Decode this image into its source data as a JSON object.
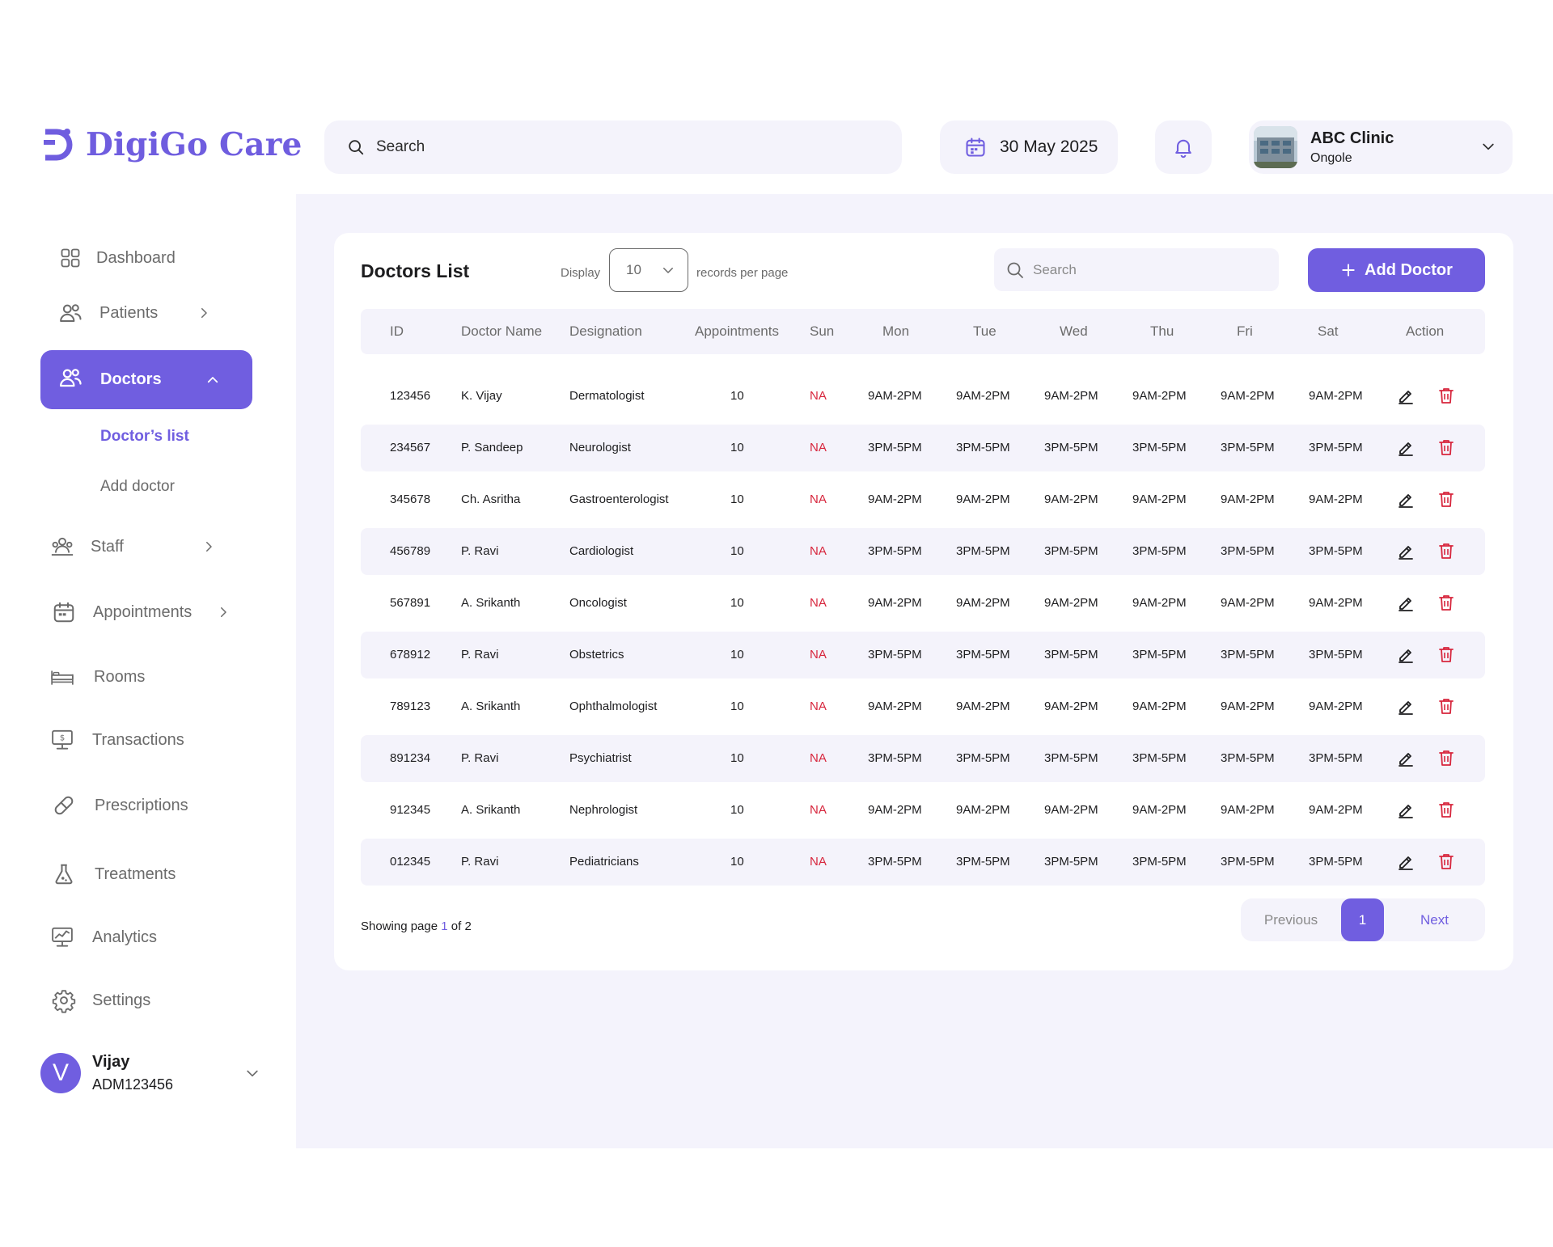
{
  "brand": {
    "name": "DigiGo Care",
    "accent": "#705ee0"
  },
  "header": {
    "search_placeholder": "Search",
    "date": "30 May 2025",
    "clinic": {
      "name": "ABC Clinic",
      "location": "Ongole"
    }
  },
  "sidebar": {
    "items": [
      {
        "label": "Dashboard",
        "icon": "dashboard-grid-icon"
      },
      {
        "label": "Patients",
        "icon": "users-icon"
      },
      {
        "label": "Doctors",
        "icon": "users-icon"
      },
      {
        "label": "Staff",
        "icon": "staff-icon"
      },
      {
        "label": "Appointments",
        "icon": "calendar-icon"
      },
      {
        "label": "Rooms",
        "icon": "bed-icon"
      },
      {
        "label": "Transactions",
        "icon": "monitor-dollar-icon"
      },
      {
        "label": "Prescriptions",
        "icon": "pill-icon"
      },
      {
        "label": "Treatments",
        "icon": "flask-icon"
      },
      {
        "label": "Analytics",
        "icon": "chart-icon"
      },
      {
        "label": "Settings",
        "icon": "gear-icon"
      }
    ],
    "sub_items": [
      "Doctor’s list",
      "Add doctor"
    ],
    "user": {
      "initial": "V",
      "name": "Vijay",
      "id": "ADM123456"
    }
  },
  "main": {
    "title": "Doctors List",
    "display_label": "Display",
    "per_page": "10",
    "records_label": "records per page",
    "search_placeholder": "Search",
    "add_label": "Add Doctor",
    "columns": [
      "ID",
      "Doctor Name",
      "Designation",
      "Appointments",
      "Sun",
      "Mon",
      "Tue",
      "Wed",
      "Thu",
      "Fri",
      "Sat",
      "Action"
    ],
    "rows": [
      {
        "id": "123456",
        "name": "K. Vijay",
        "designation": "Dermatologist",
        "appointments": "10",
        "sun": "NA",
        "mon": "9AM-2PM",
        "tue": "9AM-2PM",
        "wed": "9AM-2PM",
        "thu": "9AM-2PM",
        "fri": "9AM-2PM",
        "sat": "9AM-2PM"
      },
      {
        "id": "234567",
        "name": "P. Sandeep",
        "designation": "Neurologist",
        "appointments": "10",
        "sun": "NA",
        "mon": "3PM-5PM",
        "tue": "3PM-5PM",
        "wed": "3PM-5PM",
        "thu": "3PM-5PM",
        "fri": "3PM-5PM",
        "sat": "3PM-5PM"
      },
      {
        "id": "345678",
        "name": "Ch. Asritha",
        "designation": "Gastroenterologist",
        "appointments": "10",
        "sun": "NA",
        "mon": "9AM-2PM",
        "tue": "9AM-2PM",
        "wed": "9AM-2PM",
        "thu": "9AM-2PM",
        "fri": "9AM-2PM",
        "sat": "9AM-2PM"
      },
      {
        "id": "456789",
        "name": "P. Ravi",
        "designation": "Cardiologist",
        "appointments": "10",
        "sun": "NA",
        "mon": "3PM-5PM",
        "tue": "3PM-5PM",
        "wed": "3PM-5PM",
        "thu": "3PM-5PM",
        "fri": "3PM-5PM",
        "sat": "3PM-5PM"
      },
      {
        "id": "567891",
        "name": "A. Srikanth",
        "designation": "Oncologist",
        "appointments": "10",
        "sun": "NA",
        "mon": "9AM-2PM",
        "tue": "9AM-2PM",
        "wed": "9AM-2PM",
        "thu": "9AM-2PM",
        "fri": "9AM-2PM",
        "sat": "9AM-2PM"
      },
      {
        "id": "678912",
        "name": "P. Ravi",
        "designation": "Obstetrics",
        "appointments": "10",
        "sun": "NA",
        "mon": "3PM-5PM",
        "tue": "3PM-5PM",
        "wed": "3PM-5PM",
        "thu": "3PM-5PM",
        "fri": "3PM-5PM",
        "sat": "3PM-5PM"
      },
      {
        "id": "789123",
        "name": "A. Srikanth",
        "designation": "Ophthalmologist",
        "appointments": "10",
        "sun": "NA",
        "mon": "9AM-2PM",
        "tue": "9AM-2PM",
        "wed": "9AM-2PM",
        "thu": "9AM-2PM",
        "fri": "9AM-2PM",
        "sat": "9AM-2PM"
      },
      {
        "id": "891234",
        "name": "P. Ravi",
        "designation": "Psychiatrist",
        "appointments": "10",
        "sun": "NA",
        "mon": "3PM-5PM",
        "tue": "3PM-5PM",
        "wed": "3PM-5PM",
        "thu": "3PM-5PM",
        "fri": "3PM-5PM",
        "sat": "3PM-5PM"
      },
      {
        "id": "912345",
        "name": "A. Srikanth",
        "designation": "Nephrologist",
        "appointments": "10",
        "sun": "NA",
        "mon": "9AM-2PM",
        "tue": "9AM-2PM",
        "wed": "9AM-2PM",
        "thu": "9AM-2PM",
        "fri": "9AM-2PM",
        "sat": "9AM-2PM"
      },
      {
        "id": "012345",
        "name": "P. Ravi",
        "designation": "Pediatricians",
        "appointments": "10",
        "sun": "NA",
        "mon": "3PM-5PM",
        "tue": "3PM-5PM",
        "wed": "3PM-5PM",
        "thu": "3PM-5PM",
        "fri": "3PM-5PM",
        "sat": "3PM-5PM"
      }
    ],
    "pagination": {
      "showing_prefix": "Showing page ",
      "current": "1",
      "of_text": " of 2",
      "previous": "Previous",
      "page": "1",
      "next": "Next"
    }
  }
}
